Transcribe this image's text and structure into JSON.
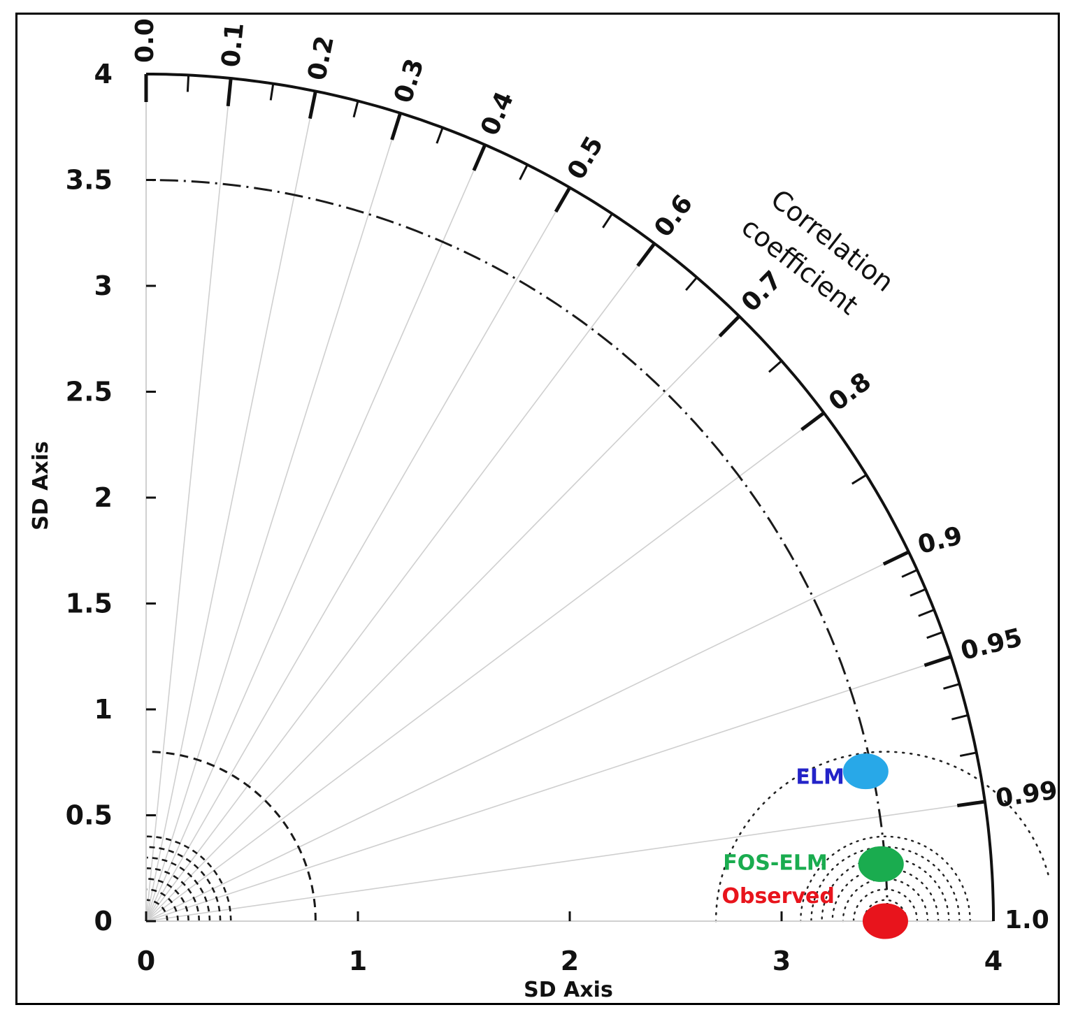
{
  "chart_data": {
    "type": "taylor-diagram",
    "xlabel": "SD Axis",
    "ylabel": "SD Axis",
    "arc_label_line1": "Correlation",
    "arc_label_line2": "coefficient",
    "sd_range": [
      0,
      4
    ],
    "x_ticks": [
      "0",
      "1",
      "2",
      "3",
      "4"
    ],
    "y_ticks": [
      "0",
      "0.5",
      "1",
      "1.5",
      "2",
      "2.5",
      "3",
      "3.5",
      "4"
    ],
    "correlation_ticks": [
      "0.0",
      "0.1",
      "0.2",
      "0.3",
      "0.4",
      "0.5",
      "0.6",
      "0.7",
      "0.8",
      "0.9",
      "0.95",
      "0.99",
      "1.0"
    ],
    "rms_contours_around_origin": [
      0.1,
      0.15,
      0.2,
      0.25,
      0.3,
      0.35,
      0.4,
      0.8
    ],
    "reference_sd_arc": 3.5,
    "points": [
      {
        "name": "Observed",
        "sd": 3.49,
        "correlation": 1.0,
        "color": "#e8141c",
        "label_color": "#e8141c"
      },
      {
        "name": "FOS-ELM",
        "sd": 3.48,
        "correlation": 0.997,
        "color": "#1aac4f",
        "label_color": "#1aac4f"
      },
      {
        "name": "ELM",
        "sd": 3.47,
        "correlation": 0.979,
        "color": "#28a8e8",
        "label_color": "#2323c8"
      }
    ]
  }
}
